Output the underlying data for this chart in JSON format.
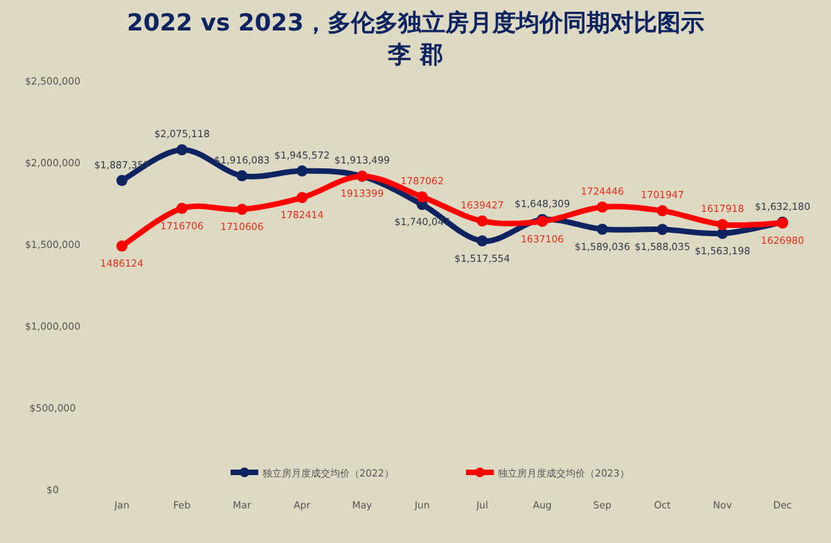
{
  "chart_data": {
    "type": "line",
    "title": "2022 vs 2023，多伦多独立房月度均价同期对比图示",
    "subtitle": "李 郡",
    "categories": [
      "Jan",
      "Feb",
      "Mar",
      "Apr",
      "May",
      "Jun",
      "Jul",
      "Aug",
      "Sep",
      "Oct",
      "Nov",
      "Dec"
    ],
    "series": [
      {
        "name": "独立房月度成交均价（2022）",
        "color": "#0d2461",
        "values": [
          1887357,
          2075118,
          1916083,
          1945572,
          1913499,
          1740047,
          1517554,
          1648309,
          1589036,
          1588035,
          1563198,
          1632180
        ],
        "value_labels": [
          "$1,887,357",
          "$2,075,118",
          "$1,916,083",
          "$1,945,572",
          "$1,913,499",
          "$1,740,047",
          "$1,517,554",
          "$1,648,309",
          "$1,589,036",
          "$1,588,035",
          "$1,563,198",
          "$1,632,180"
        ]
      },
      {
        "name": "独立房月度成交均价（2023）",
        "color": "#ff0000",
        "values": [
          1486124,
          1716706,
          1710606,
          1782414,
          1913399,
          1787062,
          1639427,
          1637106,
          1724446,
          1701947,
          1617918,
          1626980
        ],
        "value_labels": [
          "1486124",
          "1716706",
          "1710606",
          "1782414",
          "1913399",
          "1787062",
          "1639427",
          "1637106",
          "1724446",
          "1701947",
          "1617918",
          "1626980"
        ]
      }
    ],
    "ylim": [
      0,
      2500000
    ],
    "yticks": [
      {
        "value": 0,
        "label": "$0"
      },
      {
        "value": 500000,
        "label": "$500,000"
      },
      {
        "value": 1000000,
        "label": "$1,000,000"
      },
      {
        "value": 1500000,
        "label": "$1,500,000"
      },
      {
        "value": 2000000,
        "label": "$2,000,000"
      },
      {
        "value": 2500000,
        "label": "$2,500,000"
      }
    ],
    "grid": false,
    "legend": "bottom",
    "marker": "circle",
    "line_style": "solid"
  }
}
